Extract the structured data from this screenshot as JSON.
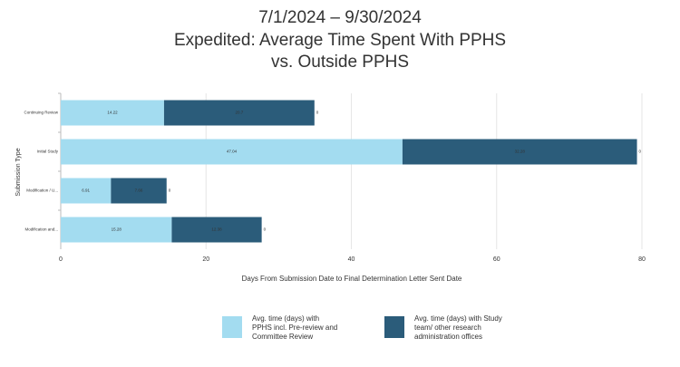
{
  "chart_data": {
    "type": "hbar_stacked",
    "title": [
      "7/1/2024 – 9/30/2024",
      "Expedited: Average Time Spent With PPHS",
      "vs. Outside PPHS"
    ],
    "x_label": "Days From Submission Date to Final Determination Letter Sent Date",
    "y_label": "Submission Type",
    "categories": [
      "Continuing Review",
      "Initial Study",
      "Modification / U...",
      "Modification and..."
    ],
    "series": [
      {
        "name": "Avg. time (days) with PPHS incl. Pre-review and Committee Review",
        "color": "#a3dcf0",
        "values": [
          14.22,
          47.04,
          6.91,
          15.28
        ]
      },
      {
        "name": "Avg. time (days) with Study team/ other research administration offices",
        "color": "#2b5c7a",
        "values": [
          20.7,
          32.28,
          7.66,
          12.38
        ]
      }
    ],
    "end_values": [
      0,
      0,
      0,
      0
    ],
    "xlim": [
      0,
      80
    ],
    "xticks": [
      0,
      20,
      40,
      60,
      80
    ],
    "grid": true
  }
}
